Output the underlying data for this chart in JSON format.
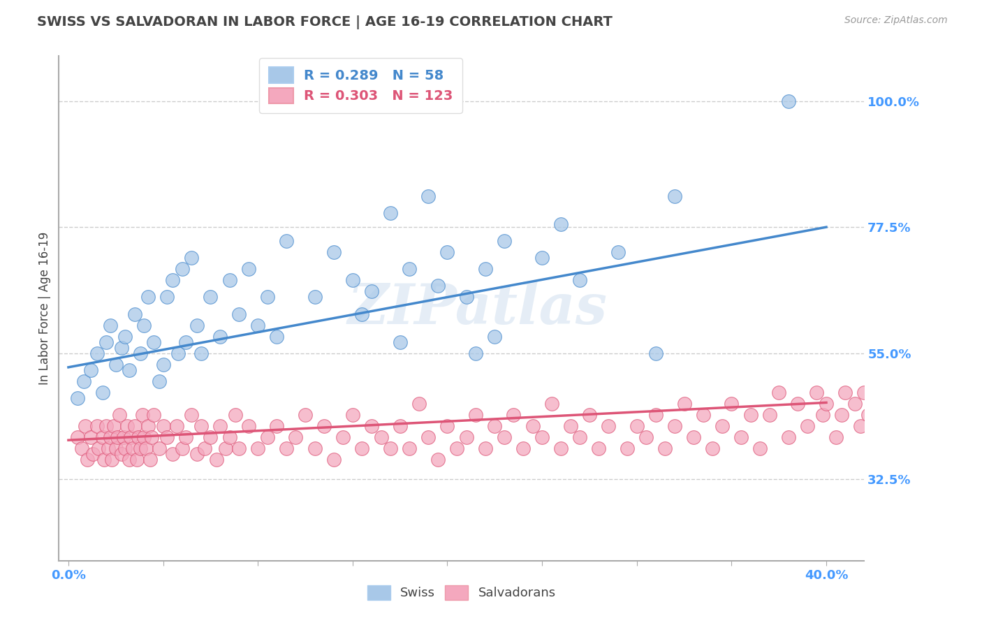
{
  "title": "SWISS VS SALVADORAN IN LABOR FORCE | AGE 16-19 CORRELATION CHART",
  "source": "Source: ZipAtlas.com",
  "ylabel": "In Labor Force | Age 16-19",
  "xlim": [
    -0.005,
    0.42
  ],
  "ylim": [
    0.18,
    1.08
  ],
  "yticks": [
    0.325,
    0.55,
    0.775,
    1.0
  ],
  "ytick_labels": [
    "32.5%",
    "55.0%",
    "77.5%",
    "100.0%"
  ],
  "xticks": [
    0.0,
    0.05,
    0.1,
    0.15,
    0.2,
    0.25,
    0.3,
    0.35,
    0.4
  ],
  "xtick_labels": [
    "0.0%",
    "",
    "",
    "",
    "",
    "",
    "",
    "",
    "40.0%"
  ],
  "swiss_R": 0.289,
  "swiss_N": 58,
  "salvadoran_R": 0.303,
  "salvadoran_N": 123,
  "swiss_color": "#a8c8e8",
  "salvadoran_color": "#f4a8be",
  "swiss_line_color": "#4488cc",
  "salvadoran_line_color": "#dd5577",
  "legend_text_color_swiss": "#4488cc",
  "legend_text_color_salv": "#dd5577",
  "watermark": "ZIPatlas",
  "background_color": "#ffffff",
  "grid_color": "#cccccc",
  "title_color": "#444444",
  "axis_color": "#aaaaaa",
  "tick_color": "#4499ff",
  "swiss_scatter_x": [
    0.005,
    0.008,
    0.012,
    0.015,
    0.018,
    0.02,
    0.022,
    0.025,
    0.028,
    0.03,
    0.032,
    0.035,
    0.038,
    0.04,
    0.042,
    0.045,
    0.048,
    0.05,
    0.052,
    0.055,
    0.058,
    0.06,
    0.062,
    0.065,
    0.068,
    0.07,
    0.075,
    0.08,
    0.085,
    0.09,
    0.095,
    0.1,
    0.105,
    0.11,
    0.115,
    0.13,
    0.14,
    0.15,
    0.155,
    0.16,
    0.17,
    0.175,
    0.18,
    0.19,
    0.195,
    0.2,
    0.21,
    0.215,
    0.22,
    0.225,
    0.23,
    0.25,
    0.26,
    0.27,
    0.29,
    0.31,
    0.32,
    0.38
  ],
  "swiss_scatter_y": [
    0.47,
    0.5,
    0.52,
    0.55,
    0.48,
    0.57,
    0.6,
    0.53,
    0.56,
    0.58,
    0.52,
    0.62,
    0.55,
    0.6,
    0.65,
    0.57,
    0.5,
    0.53,
    0.65,
    0.68,
    0.55,
    0.7,
    0.57,
    0.72,
    0.6,
    0.55,
    0.65,
    0.58,
    0.68,
    0.62,
    0.7,
    0.6,
    0.65,
    0.58,
    0.75,
    0.65,
    0.73,
    0.68,
    0.62,
    0.66,
    0.8,
    0.57,
    0.7,
    0.83,
    0.67,
    0.73,
    0.65,
    0.55,
    0.7,
    0.58,
    0.75,
    0.72,
    0.78,
    0.68,
    0.73,
    0.55,
    0.83,
    1.0
  ],
  "salvadoran_scatter_x": [
    0.005,
    0.007,
    0.009,
    0.01,
    0.012,
    0.013,
    0.015,
    0.016,
    0.018,
    0.019,
    0.02,
    0.021,
    0.022,
    0.023,
    0.024,
    0.025,
    0.026,
    0.027,
    0.028,
    0.029,
    0.03,
    0.031,
    0.032,
    0.033,
    0.034,
    0.035,
    0.036,
    0.037,
    0.038,
    0.039,
    0.04,
    0.041,
    0.042,
    0.043,
    0.044,
    0.045,
    0.048,
    0.05,
    0.052,
    0.055,
    0.057,
    0.06,
    0.062,
    0.065,
    0.068,
    0.07,
    0.072,
    0.075,
    0.078,
    0.08,
    0.083,
    0.085,
    0.088,
    0.09,
    0.095,
    0.1,
    0.105,
    0.11,
    0.115,
    0.12,
    0.125,
    0.13,
    0.135,
    0.14,
    0.145,
    0.15,
    0.155,
    0.16,
    0.165,
    0.17,
    0.175,
    0.18,
    0.185,
    0.19,
    0.195,
    0.2,
    0.205,
    0.21,
    0.215,
    0.22,
    0.225,
    0.23,
    0.235,
    0.24,
    0.245,
    0.25,
    0.255,
    0.26,
    0.265,
    0.27,
    0.275,
    0.28,
    0.285,
    0.295,
    0.3,
    0.305,
    0.31,
    0.315,
    0.32,
    0.325,
    0.33,
    0.335,
    0.34,
    0.345,
    0.35,
    0.355,
    0.36,
    0.365,
    0.37,
    0.375,
    0.38,
    0.385,
    0.39,
    0.395,
    0.398,
    0.4,
    0.405,
    0.408,
    0.41,
    0.415,
    0.418,
    0.42,
    0.422
  ],
  "salvadoran_scatter_y": [
    0.4,
    0.38,
    0.42,
    0.36,
    0.4,
    0.37,
    0.42,
    0.38,
    0.4,
    0.36,
    0.42,
    0.38,
    0.4,
    0.36,
    0.42,
    0.38,
    0.4,
    0.44,
    0.37,
    0.4,
    0.38,
    0.42,
    0.36,
    0.4,
    0.38,
    0.42,
    0.36,
    0.4,
    0.38,
    0.44,
    0.4,
    0.38,
    0.42,
    0.36,
    0.4,
    0.44,
    0.38,
    0.42,
    0.4,
    0.37,
    0.42,
    0.38,
    0.4,
    0.44,
    0.37,
    0.42,
    0.38,
    0.4,
    0.36,
    0.42,
    0.38,
    0.4,
    0.44,
    0.38,
    0.42,
    0.38,
    0.4,
    0.42,
    0.38,
    0.4,
    0.44,
    0.38,
    0.42,
    0.36,
    0.4,
    0.44,
    0.38,
    0.42,
    0.4,
    0.38,
    0.42,
    0.38,
    0.46,
    0.4,
    0.36,
    0.42,
    0.38,
    0.4,
    0.44,
    0.38,
    0.42,
    0.4,
    0.44,
    0.38,
    0.42,
    0.4,
    0.46,
    0.38,
    0.42,
    0.4,
    0.44,
    0.38,
    0.42,
    0.38,
    0.42,
    0.4,
    0.44,
    0.38,
    0.42,
    0.46,
    0.4,
    0.44,
    0.38,
    0.42,
    0.46,
    0.4,
    0.44,
    0.38,
    0.44,
    0.48,
    0.4,
    0.46,
    0.42,
    0.48,
    0.44,
    0.46,
    0.4,
    0.44,
    0.48,
    0.46,
    0.42,
    0.48,
    0.44
  ],
  "swiss_line_x0": 0.0,
  "swiss_line_y0": 0.525,
  "swiss_line_x1": 0.4,
  "swiss_line_y1": 0.775,
  "salv_line_x0": 0.0,
  "salv_line_y0": 0.395,
  "salv_line_x1": 0.4,
  "salv_line_y1": 0.462
}
